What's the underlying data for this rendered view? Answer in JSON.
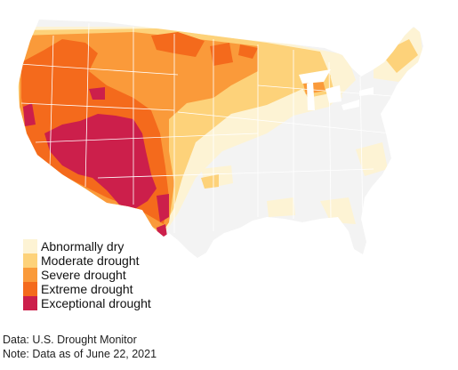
{
  "legend": {
    "items": [
      {
        "key": "abnormally-dry",
        "label": "Abnormally dry",
        "color": "#fdf3d4"
      },
      {
        "key": "moderate-drought",
        "label": "Moderate drought",
        "color": "#fdd27a"
      },
      {
        "key": "severe-drought",
        "label": "Severe drought",
        "color": "#fa9a3a"
      },
      {
        "key": "extreme-drought",
        "label": "Extreme drought",
        "color": "#f46a1c"
      },
      {
        "key": "exceptional-drought",
        "label": "Exceptional drought",
        "color": "#cc1f4b"
      }
    ]
  },
  "source": {
    "data_line": "Data: U.S. Drought Monitor",
    "note_line": "Note: Data as of June 22, 2021"
  },
  "map_style": {
    "land_color": "#f3f3f3",
    "border_color": "#ffffff",
    "water_color": "#ffffff"
  }
}
